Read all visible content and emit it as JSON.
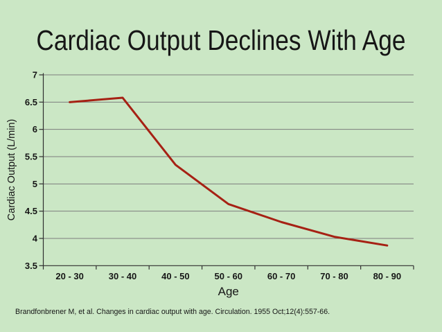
{
  "slide": {
    "title": "Cardiac Output Declines With Age",
    "citation": "Brandfonbrener M, et al. Changes in cardiac output with age. Circulation. 1955 Oct;12(4):557-66."
  },
  "colors": {
    "background": "#cbe7c5",
    "line": "#a62114",
    "grid": "#7d7d7d",
    "axis": "#2f2f2f",
    "text": "#161616"
  },
  "chart_data": {
    "type": "line",
    "title": "",
    "xlabel": "Age",
    "ylabel": "Cardiac Output (L/min)",
    "categories": [
      "20 - 30",
      "30 - 40",
      "40 - 50",
      "50 - 60",
      "60 - 70",
      "70 - 80",
      "80 - 90"
    ],
    "series": [
      {
        "name": "Cardiac Output (L/min)",
        "values": [
          6.5,
          6.58,
          5.35,
          4.63,
          4.3,
          4.03,
          3.87
        ]
      }
    ],
    "ylim": [
      3.5,
      7
    ],
    "ytick_step": 0.5,
    "ytick_labels": [
      "7",
      "6.5",
      "6",
      "5.5",
      "5",
      "4.5",
      "4",
      "3.5"
    ],
    "grid": true,
    "legend_position": "none"
  }
}
